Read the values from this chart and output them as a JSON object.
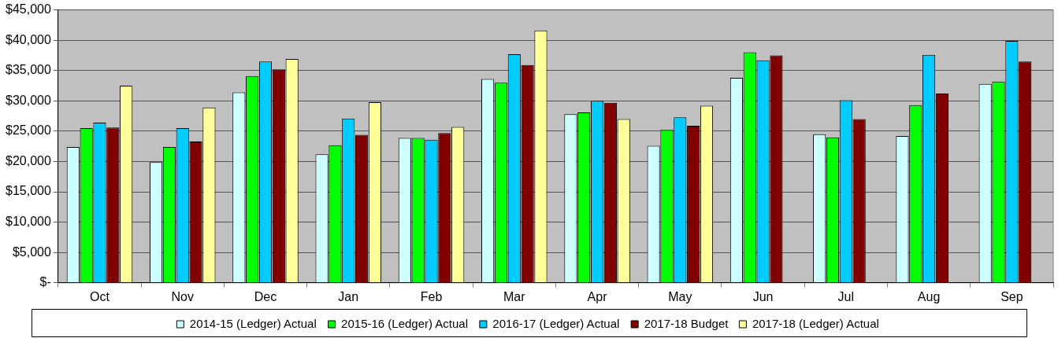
{
  "chart_data": {
    "type": "bar",
    "categories": [
      "Oct",
      "Nov",
      "Dec",
      "Jan",
      "Feb",
      "Mar",
      "Apr",
      "May",
      "Jun",
      "Jul",
      "Aug",
      "Sep"
    ],
    "series": [
      {
        "name": "2014-15 (Ledger) Actual",
        "color": "#ccffff",
        "values": [
          22400,
          19900,
          31400,
          21200,
          23900,
          33600,
          27800,
          22600,
          33800,
          24500,
          24200,
          32800
        ]
      },
      {
        "name": "2015-16 (Ledger) Actual",
        "color": "#00ff00",
        "values": [
          25500,
          22400,
          34100,
          22700,
          23900,
          33000,
          28100,
          25200,
          38000,
          24000,
          29300,
          33200
        ]
      },
      {
        "name": "2016-17 (Ledger) Actual",
        "color": "#00ccff",
        "values": [
          26400,
          25500,
          36500,
          27100,
          23600,
          37700,
          30000,
          27300,
          36700,
          30100,
          37600,
          39900
        ]
      },
      {
        "name": "2017-18 Budget",
        "color": "#800000",
        "values": [
          25600,
          23300,
          35200,
          24400,
          24700,
          35900,
          29700,
          25900,
          37500,
          27000,
          31200,
          36500
        ]
      },
      {
        "name": "2017-18 (Ledger) Actual",
        "color": "#ffff99",
        "values": [
          32500,
          28900,
          36900,
          29800,
          25700,
          41600,
          27000,
          29200,
          null,
          null,
          null,
          null
        ]
      }
    ],
    "ylim": [
      0,
      45000
    ],
    "yticks": [
      {
        "value": 0,
        "label": "$-"
      },
      {
        "value": 5000,
        "label": "$5,000"
      },
      {
        "value": 10000,
        "label": "$10,000"
      },
      {
        "value": 15000,
        "label": "$15,000"
      },
      {
        "value": 20000,
        "label": "$20,000"
      },
      {
        "value": 25000,
        "label": "$25,000"
      },
      {
        "value": 30000,
        "label": "$30,000"
      },
      {
        "value": 35000,
        "label": "$35,000"
      },
      {
        "value": 40000,
        "label": "$40,000"
      },
      {
        "value": 45000,
        "label": "$45,000"
      }
    ],
    "grid": "y",
    "legend": "bottom"
  }
}
